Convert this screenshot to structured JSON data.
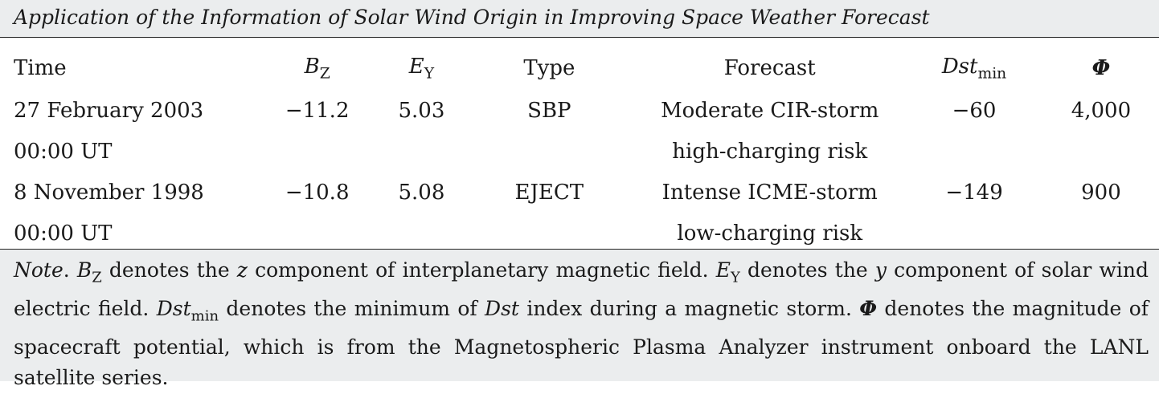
{
  "caption": "Application of the Information of Solar Wind Origin in Improving Space Weather Forecast",
  "table": {
    "headers": {
      "time": "Time",
      "bz_base": "B",
      "bz_sub": "Z",
      "ey_base": "E",
      "ey_sub": "Y",
      "type": "Type",
      "forecast": "Forecast",
      "dst_base": "Dst",
      "dst_sub": "min",
      "phi": "Φ"
    },
    "rows": [
      {
        "time_line1": "27 February 2003",
        "time_line2": "00:00 UT",
        "bz": "−11.2",
        "ey": "5.03",
        "type": "SBP",
        "forecast_line1": "Moderate CIR-storm",
        "forecast_line2": "high-charging risk",
        "dst": "−60",
        "phi": "4,000"
      },
      {
        "time_line1": "8 November 1998",
        "time_line2": "00:00 UT",
        "bz": "−10.8",
        "ey": "5.08",
        "type": "EJECT",
        "forecast_line1": "Intense ICME-storm",
        "forecast_line2": "low-charging risk",
        "dst": "−149",
        "phi": "900"
      }
    ]
  },
  "note": {
    "label": "Note",
    "t1": ". ",
    "bz_base": "B",
    "bz_sub": "Z",
    "t2": " denotes the ",
    "z": "z",
    "t3": " component of interplanetary magnetic field. ",
    "ey_base": "E",
    "ey_sub": "Y",
    "t4": " denotes the ",
    "y": "y",
    "t5": " component of solar wind electric field. ",
    "dst_base": "Dst",
    "dst_sub": "min",
    "t6": " denotes the minimum of ",
    "dst_word": "Dst",
    "t7": " index during a magnetic storm. ",
    "phi": "Φ",
    "t8": " denotes the magnitude of spacecraft potential, which is from the Magnetospheric Plasma Analyzer instrument onboard the LANL satellite series."
  }
}
